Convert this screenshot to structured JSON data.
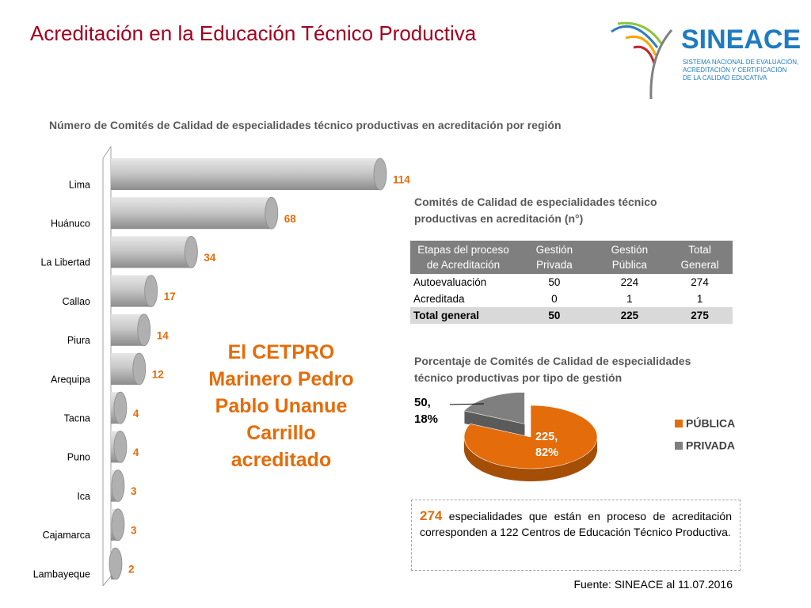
{
  "header": {
    "title": "Acreditación en la Educación Técnico Productiva"
  },
  "logo": {
    "name": "SINEACE",
    "lines": [
      "SISTEMA NACIONAL DE EVALUACIÓN,",
      "ACREDITACIÓN Y CERTIFICACIÓN",
      "DE LA CALIDAD EDUCATIVA"
    ]
  },
  "chart_data": [
    {
      "type": "bar",
      "orientation": "horizontal",
      "title": "Número de Comités de Calidad de especialidades técnico productivas en acreditación por región",
      "categories": [
        "Lima",
        "Huánuco",
        "La Libertad",
        "Callao",
        "Piura",
        "Arequipa",
        "Tacna",
        "Puno",
        "Ica",
        "Cajamarca",
        "Lambayeque"
      ],
      "values": [
        114,
        68,
        34,
        17,
        14,
        12,
        4,
        4,
        3,
        3,
        2
      ],
      "color": "#b0b0b0",
      "value_label_color": "#e46c0a",
      "annotation": "El CETPRO Marinero Pedro Pablo Unanue Carrillo acreditado"
    },
    {
      "type": "pie",
      "title": "Porcentaje de Comités de Calidad de especialidades técnico productivas por tipo de gestión",
      "categories": [
        "PÚBLICA",
        "PRIVADA"
      ],
      "values": [
        225,
        50
      ],
      "value_labels": [
        "225, 82%",
        "50, 18%"
      ],
      "colors": [
        "#e46c0a",
        "#7f7f7f"
      ],
      "legend": "right"
    }
  ],
  "table": {
    "title": "Comités de Calidad de especialidades técnico productivas en acreditación  (n°)",
    "header": [
      "Etapas del proceso de Acreditación",
      "Gestión Privada",
      "Gestión Pública",
      "Total General"
    ],
    "rows": [
      [
        "Autoevaluación",
        50,
        224,
        274
      ],
      [
        "Acreditada",
        0,
        1,
        1
      ],
      [
        "Total general",
        50,
        225,
        275
      ]
    ]
  },
  "callout": {
    "highlight": "274",
    "text": "especialidades que están en proceso de acreditación corresponden a 122 Centros de Educación Técnico Productiva."
  },
  "source": "Fuente: SINEACE al  11.07.2016"
}
